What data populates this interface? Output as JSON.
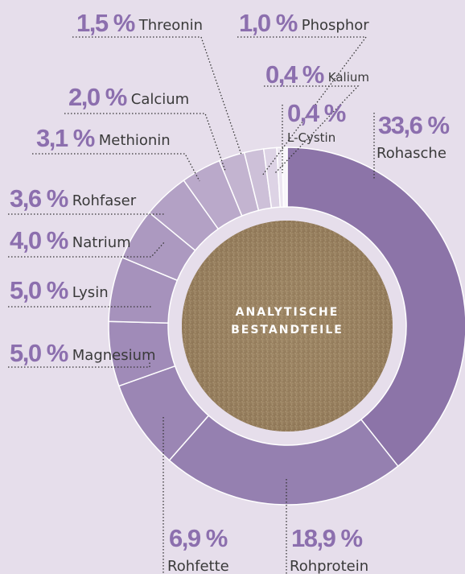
{
  "chart_data": {
    "type": "donut",
    "center_label": [
      "ANALYTISCHE",
      "BESTANDTEILE"
    ],
    "categories": [
      "Rohasche",
      "Rohprotein",
      "Rohfette",
      "Magnesium",
      "Lysin",
      "Natrium",
      "Rohfaser",
      "Methionin",
      "Calcium",
      "Threonin",
      "Phosphor",
      "Kalium",
      "L-Cystin"
    ],
    "values": [
      33.6,
      18.9,
      6.9,
      5.0,
      5.0,
      4.0,
      3.6,
      3.1,
      2.0,
      1.5,
      1.0,
      0.4,
      0.4
    ],
    "value_labels": [
      "33,6 %",
      "18,9 %",
      "6,9 %",
      "5,0 %",
      "5,0 %",
      "4,0 %",
      "3,6 %",
      "3,1 %",
      "2,0 %",
      "1,5 %",
      "1,0 %",
      "0,4 %",
      "0,4 %"
    ],
    "colors": [
      "#8c74a8",
      "#9580b0",
      "#9b86b4",
      "#a08bb8",
      "#a692bc",
      "#ac99c0",
      "#b3a1c5",
      "#baa9ca",
      "#c3b4d0",
      "#cdc0d8",
      "#ddd3e5",
      "#ece6f1",
      "#f8f6fa"
    ]
  }
}
